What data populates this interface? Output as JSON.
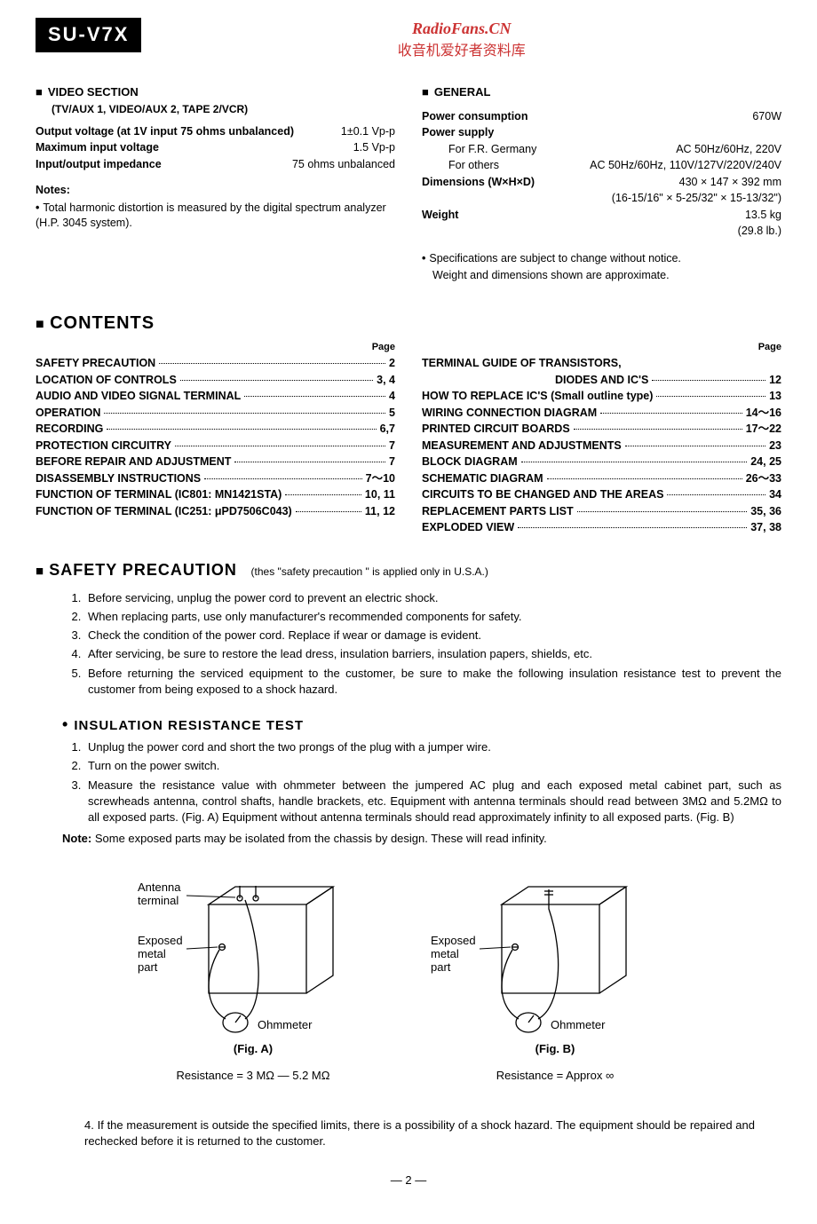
{
  "header": {
    "model": "SU-V7X",
    "watermark_en": "RadioFans.CN",
    "watermark_cn": "收音机爱好者资料库"
  },
  "video_section": {
    "title": "VIDEO SECTION",
    "subtitle": "(TV/AUX 1, VIDEO/AUX 2, TAPE 2/VCR)",
    "specs": [
      {
        "label": "Output voltage (at 1V input 75 ohms unbalanced)",
        "value": "1±0.1 Vp-p"
      },
      {
        "label": "Maximum input voltage",
        "value": "1.5 Vp-p"
      },
      {
        "label": "Input/output impedance",
        "value": "75 ohms unbalanced"
      }
    ],
    "notes_label": "Notes:",
    "notes_text": "Total harmonic distortion is measured by the digital spectrum analyzer (H.P. 3045 system)."
  },
  "general_section": {
    "title": "GENERAL",
    "rows": [
      {
        "label": "Power consumption",
        "value": "670W",
        "bold": true
      },
      {
        "label": "Power supply",
        "value": "",
        "bold": true
      },
      {
        "label": "For F.R. Germany",
        "value": "AC 50Hz/60Hz, 220V",
        "indent": true
      },
      {
        "label": "For others",
        "value": "AC 50Hz/60Hz, 110V/127V/220V/240V",
        "indent": true
      },
      {
        "label": "Dimensions (W×H×D)",
        "value": "430 × 147 × 392 mm",
        "bold": true
      },
      {
        "label": "",
        "value": "(16-15/16\" × 5-25/32\" × 15-13/32\")"
      },
      {
        "label": "Weight",
        "value": "13.5 kg",
        "bold": true
      },
      {
        "label": "",
        "value": "(29.8 lb.)"
      }
    ],
    "disclaimer1": "Specifications are subject to change without notice.",
    "disclaimer2": "Weight and dimensions shown are approximate."
  },
  "contents": {
    "title": "CONTENTS",
    "page_label": "Page",
    "left": [
      {
        "label": "SAFETY PRECAUTION",
        "page": "2"
      },
      {
        "label": "LOCATION OF CONTROLS",
        "page": "3, 4"
      },
      {
        "label": "AUDIO AND VIDEO SIGNAL TERMINAL",
        "page": "4"
      },
      {
        "label": "OPERATION",
        "page": "5"
      },
      {
        "label": "RECORDING",
        "page": "6,7"
      },
      {
        "label": "PROTECTION CIRCUITRY",
        "page": "7"
      },
      {
        "label": "BEFORE REPAIR AND ADJUSTMENT",
        "page": "7"
      },
      {
        "label": "DISASSEMBLY INSTRUCTIONS",
        "page": "7～10"
      },
      {
        "label": "FUNCTION OF TERMINAL   (IC801: MN1421STA)",
        "page": "10, 11"
      },
      {
        "label": "FUNCTION OF TERMINAL   (IC251: μPD7506C043)",
        "page": "11, 12"
      }
    ],
    "right": [
      {
        "label": "TERMINAL GUIDE OF TRANSISTORS,",
        "page": "",
        "nodots": true
      },
      {
        "label": "DIODES AND IC'S",
        "page": "12",
        "indent": true
      },
      {
        "label": "HOW TO REPLACE IC'S (Small outline type)",
        "page": "13"
      },
      {
        "label": "WIRING CONNECTION DIAGRAM",
        "page": "14～16"
      },
      {
        "label": "PRINTED CIRCUIT BOARDS",
        "page": "17～22"
      },
      {
        "label": "MEASUREMENT AND ADJUSTMENTS",
        "page": "23"
      },
      {
        "label": "BLOCK DIAGRAM",
        "page": "24, 25"
      },
      {
        "label": "SCHEMATIC DIAGRAM",
        "page": "26～33"
      },
      {
        "label": "CIRCUITS TO BE CHANGED AND THE AREAS",
        "page": "34"
      },
      {
        "label": "REPLACEMENT PARTS LIST",
        "page": "35, 36"
      },
      {
        "label": "EXPLODED VIEW",
        "page": "37, 38"
      }
    ]
  },
  "safety": {
    "title": "SAFETY PRECAUTION",
    "note": "(thes \"safety precaution \" is applied only in U.S.A.)",
    "items": [
      "Before servicing, unplug the power cord to prevent an electric shock.",
      "When replacing parts, use only manufacturer's recommended components for safety.",
      "Check the condition of the power cord.  Replace if wear or damage is evident.",
      "After servicing, be sure to restore the lead dress, insulation barriers, insulation papers, shields, etc.",
      "Before returning the serviced equipment to the customer, be sure to make the following insulation resistance test to prevent the customer from being exposed to a shock hazard."
    ]
  },
  "insulation": {
    "title": "INSULATION  RESISTANCE  TEST",
    "items": [
      "Unplug the power cord and short the two prongs of the plug with a jumper wire.",
      "Turn on the power switch.",
      "Measure  the  resistance value with ohmmeter between the jumpered AC plug and each exposed metal cabinet part, such as screwheads antenna, control shafts, handle brackets, etc.  Equipment with antenna terminals should read between 3MΩ and 5.2MΩ to all exposed parts.  (Fig. A)  Equipment without antenna terminals should read approximately infinity to all exposed parts.  (Fig. B)"
    ],
    "note_label": "Note:",
    "note_text": "Some exposed parts may be isolated from the chassis by design.  These will read infinity.",
    "item4": "If the measurement is outside the specified limits, there is a possibility of a shock hazard.  The equipment should be repaired and rechecked before it is returned to the customer."
  },
  "diagram": {
    "antenna_label": "Antenna\nterminal",
    "exposed_label": "Exposed\nmetal\npart",
    "ohmmeter_label": "Ohmmeter",
    "fig_a": "(Fig. A)",
    "fig_b": "(Fig. B)",
    "res_a": "Resistance = 3 MΩ — 5.2 MΩ",
    "res_b": "Resistance = Approx  ∞"
  },
  "page_number": "— 2 —",
  "background_watermark": "RadioFans.CN"
}
